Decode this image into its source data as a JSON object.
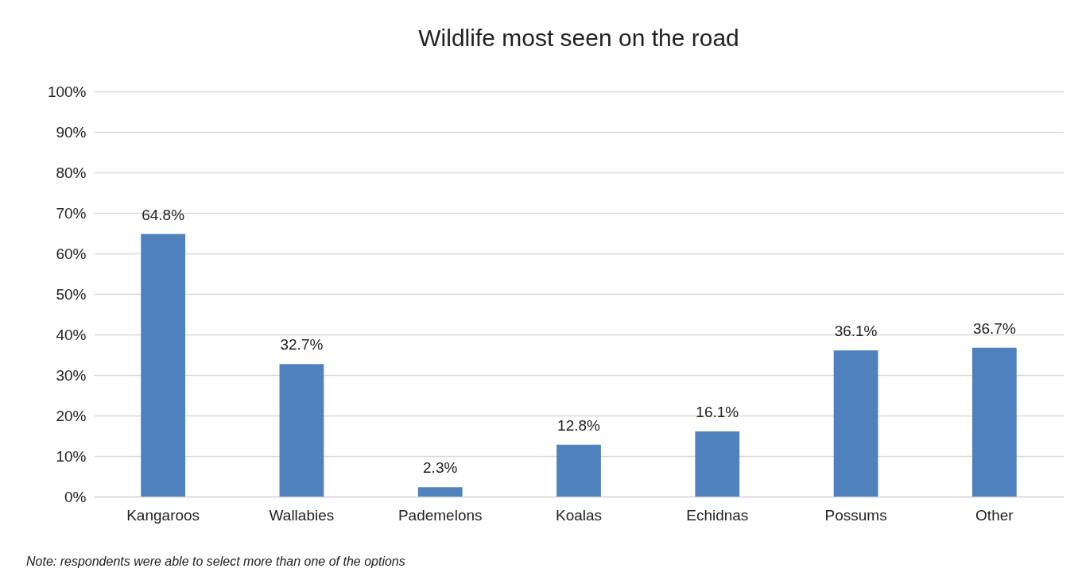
{
  "chart_data": {
    "type": "bar",
    "title": "Wildlife most seen on the road",
    "categories": [
      "Kangaroos",
      "Wallabies",
      "Pademelons",
      "Koalas",
      "Echidnas",
      "Possums",
      "Other"
    ],
    "values": [
      64.8,
      32.7,
      2.3,
      12.8,
      16.1,
      36.1,
      36.7
    ],
    "value_labels": [
      "64.8%",
      "32.7%",
      "2.3%",
      "12.8%",
      "16.1%",
      "36.1%",
      "36.7%"
    ],
    "color": "#4f81bd",
    "ylim": [
      0,
      100
    ],
    "yticks": [
      {
        "value": 0,
        "label": "0%"
      },
      {
        "value": 10,
        "label": "10%"
      },
      {
        "value": 20,
        "label": "20%"
      },
      {
        "value": 30,
        "label": "30%"
      },
      {
        "value": 40,
        "label": "40%"
      },
      {
        "value": 50,
        "label": "50%"
      },
      {
        "value": 60,
        "label": "60%"
      },
      {
        "value": 70,
        "label": "70%"
      },
      {
        "value": 80,
        "label": "80%"
      },
      {
        "value": 90,
        "label": "90%"
      },
      {
        "value": 100,
        "label": "100%"
      }
    ],
    "grid": "y",
    "annotations": [
      "Note: respondents were able to select more than one of the options"
    ]
  }
}
